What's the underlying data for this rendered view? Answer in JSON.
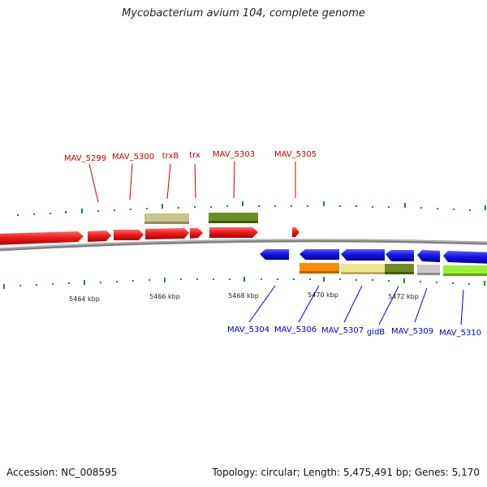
{
  "title": "Mycobacterium avium 104, complete genome",
  "footer": {
    "accession": "Accession: NC_008595",
    "topology": "Topology: circular; Length: 5,475,491 bp; Genes: 5,170"
  },
  "colors": {
    "forward_gene": "#ee1c1c",
    "reverse_gene": "#1414e6",
    "forward_label": "#cc0000",
    "reverse_label": "#0000cc",
    "ruler_tick": "#1e8a1e",
    "backbone": "#808080"
  },
  "ruler_labels": [
    "5464 kbp",
    "5466 kbp",
    "5468 kbp",
    "5470 kbp",
    "5472 kbp"
  ],
  "forward_labels": [
    "MAV_5299",
    "MAV_5300",
    "trxB",
    "trx",
    "MAV_5303",
    "MAV_5305"
  ],
  "reverse_labels": [
    "MAV_5304",
    "MAV_5306",
    "MAV_5307",
    "gidB",
    "MAV_5309",
    "MAV_5310"
  ],
  "cog_colors_forward": [
    "#c8c48a",
    "#6b8e23"
  ],
  "cog_colors_reverse": [
    "#ff8c00",
    "#f0e68c",
    "#6b8e23",
    "#c8c8c8",
    "#9acd32"
  ]
}
